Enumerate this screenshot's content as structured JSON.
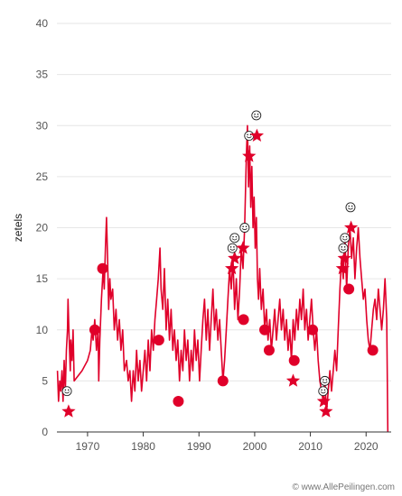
{
  "chart_data": {
    "type": "line",
    "title": "",
    "xlabel": "",
    "ylabel": "zetels",
    "xlim": [
      1964.5,
      2024.5
    ],
    "ylim": [
      0,
      40
    ],
    "x_ticks": [
      1970,
      1980,
      1990,
      2000,
      2010,
      2020
    ],
    "x_tick_labels": [
      "1970",
      "1980",
      "1990",
      "2000",
      "2010",
      "2020"
    ],
    "y_ticks": [
      0,
      5,
      10,
      15,
      20,
      25,
      30,
      35,
      40
    ],
    "y_tick_labels": [
      "0",
      "5",
      "10",
      "15",
      "20",
      "25",
      "30",
      "35",
      "40"
    ],
    "grid": true,
    "legend": "none",
    "colors": {
      "series": "#e0002a",
      "grid": "#e6e6e6",
      "axis": "#333333",
      "marker_label": "#222222"
    },
    "series": [
      {
        "name": "",
        "points": [
          [
            1964.6,
            6
          ],
          [
            1964.8,
            3
          ],
          [
            1965.0,
            5
          ],
          [
            1965.2,
            4
          ],
          [
            1965.4,
            6
          ],
          [
            1965.6,
            3
          ],
          [
            1965.8,
            7
          ],
          [
            1966.0,
            4
          ],
          [
            1966.2,
            8
          ],
          [
            1966.4,
            10
          ],
          [
            1966.5,
            13
          ],
          [
            1966.7,
            9
          ],
          [
            1966.9,
            6
          ],
          [
            1967.0,
            9
          ],
          [
            1967.2,
            7
          ],
          [
            1967.4,
            10
          ],
          [
            1967.6,
            5
          ],
          [
            1969.0,
            6
          ],
          [
            1970.0,
            7
          ],
          [
            1970.5,
            8
          ],
          [
            1970.8,
            10
          ],
          [
            1971.0,
            9
          ],
          [
            1971.3,
            11
          ],
          [
            1971.6,
            8
          ],
          [
            1971.9,
            10
          ],
          [
            1972.0,
            5
          ],
          [
            1972.2,
            9
          ],
          [
            1972.5,
            13
          ],
          [
            1972.8,
            16
          ],
          [
            1973.0,
            14
          ],
          [
            1973.2,
            18
          ],
          [
            1973.4,
            21
          ],
          [
            1973.6,
            17
          ],
          [
            1973.8,
            12
          ],
          [
            1974.0,
            15
          ],
          [
            1974.2,
            13
          ],
          [
            1974.5,
            14
          ],
          [
            1974.8,
            10
          ],
          [
            1975.1,
            12
          ],
          [
            1975.4,
            9
          ],
          [
            1975.7,
            11
          ],
          [
            1976.0,
            8
          ],
          [
            1976.3,
            10
          ],
          [
            1976.6,
            6
          ],
          [
            1977.0,
            7
          ],
          [
            1977.3,
            5
          ],
          [
            1977.6,
            6
          ],
          [
            1977.9,
            3
          ],
          [
            1978.2,
            6
          ],
          [
            1978.5,
            4
          ],
          [
            1978.8,
            8
          ],
          [
            1979.1,
            5
          ],
          [
            1979.4,
            7
          ],
          [
            1979.7,
            4
          ],
          [
            1980.0,
            6
          ],
          [
            1980.3,
            8
          ],
          [
            1980.6,
            5
          ],
          [
            1980.9,
            9
          ],
          [
            1981.2,
            6
          ],
          [
            1981.5,
            10
          ],
          [
            1981.8,
            8
          ],
          [
            1982.1,
            11
          ],
          [
            1982.4,
            13
          ],
          [
            1982.7,
            15
          ],
          [
            1983.0,
            18
          ],
          [
            1983.2,
            14
          ],
          [
            1983.5,
            12
          ],
          [
            1983.8,
            16
          ],
          [
            1984.1,
            10
          ],
          [
            1984.4,
            13
          ],
          [
            1984.7,
            9
          ],
          [
            1985.0,
            12
          ],
          [
            1985.3,
            8
          ],
          [
            1985.6,
            10
          ],
          [
            1985.9,
            7
          ],
          [
            1986.2,
            9
          ],
          [
            1986.5,
            5
          ],
          [
            1986.8,
            8
          ],
          [
            1987.1,
            6
          ],
          [
            1987.4,
            10
          ],
          [
            1987.7,
            7
          ],
          [
            1988.0,
            9
          ],
          [
            1988.3,
            5
          ],
          [
            1988.6,
            8
          ],
          [
            1988.9,
            6
          ],
          [
            1989.2,
            10
          ],
          [
            1989.5,
            7
          ],
          [
            1989.8,
            9
          ],
          [
            1990.1,
            5
          ],
          [
            1990.4,
            8
          ],
          [
            1990.7,
            11
          ],
          [
            1991.0,
            13
          ],
          [
            1991.3,
            9
          ],
          [
            1991.6,
            12
          ],
          [
            1991.9,
            8
          ],
          [
            1992.2,
            11
          ],
          [
            1992.5,
            14
          ],
          [
            1992.8,
            10
          ],
          [
            1993.1,
            12
          ],
          [
            1993.4,
            9
          ],
          [
            1993.7,
            11
          ],
          [
            1994.0,
            8
          ],
          [
            1994.3,
            5
          ],
          [
            1994.6,
            7
          ],
          [
            1994.9,
            10
          ],
          [
            1995.2,
            13
          ],
          [
            1995.5,
            16
          ],
          [
            1995.8,
            14
          ],
          [
            1996.1,
            17
          ],
          [
            1996.4,
            12
          ],
          [
            1996.7,
            15
          ],
          [
            1997.0,
            11
          ],
          [
            1997.3,
            14
          ],
          [
            1997.6,
            18
          ],
          [
            1997.9,
            16
          ],
          [
            1998.2,
            20
          ],
          [
            1998.5,
            27
          ],
          [
            1998.7,
            30
          ],
          [
            1998.9,
            24
          ],
          [
            1999.1,
            28
          ],
          [
            1999.3,
            22
          ],
          [
            1999.5,
            26
          ],
          [
            1999.7,
            20
          ],
          [
            1999.9,
            23
          ],
          [
            2000.1,
            18
          ],
          [
            2000.3,
            21
          ],
          [
            2000.5,
            15
          ],
          [
            2000.7,
            13
          ],
          [
            2000.9,
            16
          ],
          [
            2001.2,
            12
          ],
          [
            2001.5,
            14
          ],
          [
            2001.8,
            10
          ],
          [
            2002.1,
            12
          ],
          [
            2002.4,
            9
          ],
          [
            2002.7,
            11
          ],
          [
            2003.0,
            8
          ],
          [
            2003.3,
            10
          ],
          [
            2003.6,
            12
          ],
          [
            2003.9,
            9
          ],
          [
            2004.2,
            11
          ],
          [
            2004.5,
            13
          ],
          [
            2004.8,
            10
          ],
          [
            2005.1,
            12
          ],
          [
            2005.4,
            9
          ],
          [
            2005.7,
            11
          ],
          [
            2006.0,
            8
          ],
          [
            2006.3,
            10
          ],
          [
            2006.6,
            7
          ],
          [
            2006.9,
            11
          ],
          [
            2007.2,
            9
          ],
          [
            2007.5,
            12
          ],
          [
            2007.8,
            10
          ],
          [
            2008.1,
            13
          ],
          [
            2008.4,
            11
          ],
          [
            2008.7,
            14
          ],
          [
            2009.0,
            10
          ],
          [
            2009.3,
            12
          ],
          [
            2009.6,
            9
          ],
          [
            2009.9,
            11
          ],
          [
            2010.2,
            13
          ],
          [
            2010.5,
            10
          ],
          [
            2010.8,
            8
          ],
          [
            2011.1,
            10
          ],
          [
            2011.4,
            7
          ],
          [
            2011.7,
            5
          ],
          [
            2012.0,
            4
          ],
          [
            2012.3,
            3
          ],
          [
            2012.6,
            5
          ],
          [
            2012.9,
            2
          ],
          [
            2013.2,
            4
          ],
          [
            2013.5,
            6
          ],
          [
            2013.8,
            4
          ],
          [
            2014.1,
            6
          ],
          [
            2014.4,
            8
          ],
          [
            2014.7,
            6
          ],
          [
            2015.0,
            10
          ],
          [
            2015.3,
            14
          ],
          [
            2015.6,
            17
          ],
          [
            2015.9,
            15
          ],
          [
            2016.2,
            19
          ],
          [
            2016.5,
            14
          ],
          [
            2016.8,
            18
          ],
          [
            2017.1,
            20
          ],
          [
            2017.4,
            17
          ],
          [
            2017.7,
            19
          ],
          [
            2018.0,
            15
          ],
          [
            2018.3,
            18
          ],
          [
            2018.6,
            20
          ],
          [
            2018.9,
            17
          ],
          [
            2019.2,
            15
          ],
          [
            2019.5,
            13
          ],
          [
            2019.8,
            14
          ],
          [
            2020.1,
            11
          ],
          [
            2020.4,
            9
          ],
          [
            2020.7,
            8
          ],
          [
            2021.0,
            10
          ],
          [
            2021.3,
            12
          ],
          [
            2021.6,
            13
          ],
          [
            2021.9,
            11
          ],
          [
            2022.2,
            14
          ],
          [
            2022.5,
            12
          ],
          [
            2022.8,
            10
          ],
          [
            2023.1,
            12
          ],
          [
            2023.4,
            15
          ],
          [
            2023.7,
            11
          ],
          [
            2023.9,
            0
          ]
        ]
      }
    ],
    "markers": [
      {
        "shape": "star",
        "x": 1966.6,
        "y": 2
      },
      {
        "shape": "smiley",
        "x": 1966.3,
        "y": 4,
        "glyph": "😀"
      },
      {
        "shape": "dot",
        "x": 1971.3,
        "y": 10
      },
      {
        "shape": "dot",
        "x": 1972.7,
        "y": 16
      },
      {
        "shape": "dot",
        "x": 1982.8,
        "y": 9
      },
      {
        "shape": "dot",
        "x": 1986.3,
        "y": 3
      },
      {
        "shape": "dot",
        "x": 1994.3,
        "y": 5
      },
      {
        "shape": "star",
        "x": 1995.9,
        "y": 16
      },
      {
        "shape": "star",
        "x": 1996.4,
        "y": 17
      },
      {
        "shape": "smiley",
        "x": 1996.0,
        "y": 18,
        "glyph": "😀"
      },
      {
        "shape": "smiley",
        "x": 1996.4,
        "y": 19,
        "glyph": "😀"
      },
      {
        "shape": "star",
        "x": 1997.9,
        "y": 18
      },
      {
        "shape": "dot",
        "x": 1998.0,
        "y": 11
      },
      {
        "shape": "smiley",
        "x": 1998.2,
        "y": 20,
        "glyph": "😀"
      },
      {
        "shape": "star",
        "x": 1999.0,
        "y": 27
      },
      {
        "shape": "smiley",
        "x": 1999.0,
        "y": 29,
        "glyph": "😀"
      },
      {
        "shape": "star",
        "x": 2000.4,
        "y": 29
      },
      {
        "shape": "smiley",
        "x": 2000.3,
        "y": 31,
        "glyph": "😀"
      },
      {
        "shape": "dot",
        "x": 2001.8,
        "y": 10
      },
      {
        "shape": "dot",
        "x": 2002.6,
        "y": 8
      },
      {
        "shape": "star",
        "x": 2006.9,
        "y": 5
      },
      {
        "shape": "dot",
        "x": 2007.1,
        "y": 7
      },
      {
        "shape": "dot",
        "x": 2010.4,
        "y": 10
      },
      {
        "shape": "star",
        "x": 2012.4,
        "y": 3
      },
      {
        "shape": "star",
        "x": 2012.8,
        "y": 2
      },
      {
        "shape": "smiley",
        "x": 2012.3,
        "y": 4,
        "glyph": "😀"
      },
      {
        "shape": "smiley",
        "x": 2012.6,
        "y": 5,
        "glyph": "😀"
      },
      {
        "shape": "star",
        "x": 2015.8,
        "y": 16
      },
      {
        "shape": "star",
        "x": 2016.1,
        "y": 17
      },
      {
        "shape": "smiley",
        "x": 2015.9,
        "y": 18,
        "glyph": "😀"
      },
      {
        "shape": "smiley",
        "x": 2016.2,
        "y": 19,
        "glyph": "😀"
      },
      {
        "shape": "star",
        "x": 2017.3,
        "y": 20
      },
      {
        "shape": "smiley",
        "x": 2017.2,
        "y": 22,
        "glyph": "😀"
      },
      {
        "shape": "dot",
        "x": 2016.9,
        "y": 14
      },
      {
        "shape": "dot",
        "x": 2021.2,
        "y": 8
      }
    ]
  },
  "footer": {
    "credit": "© www.AllePeilingen.com"
  }
}
